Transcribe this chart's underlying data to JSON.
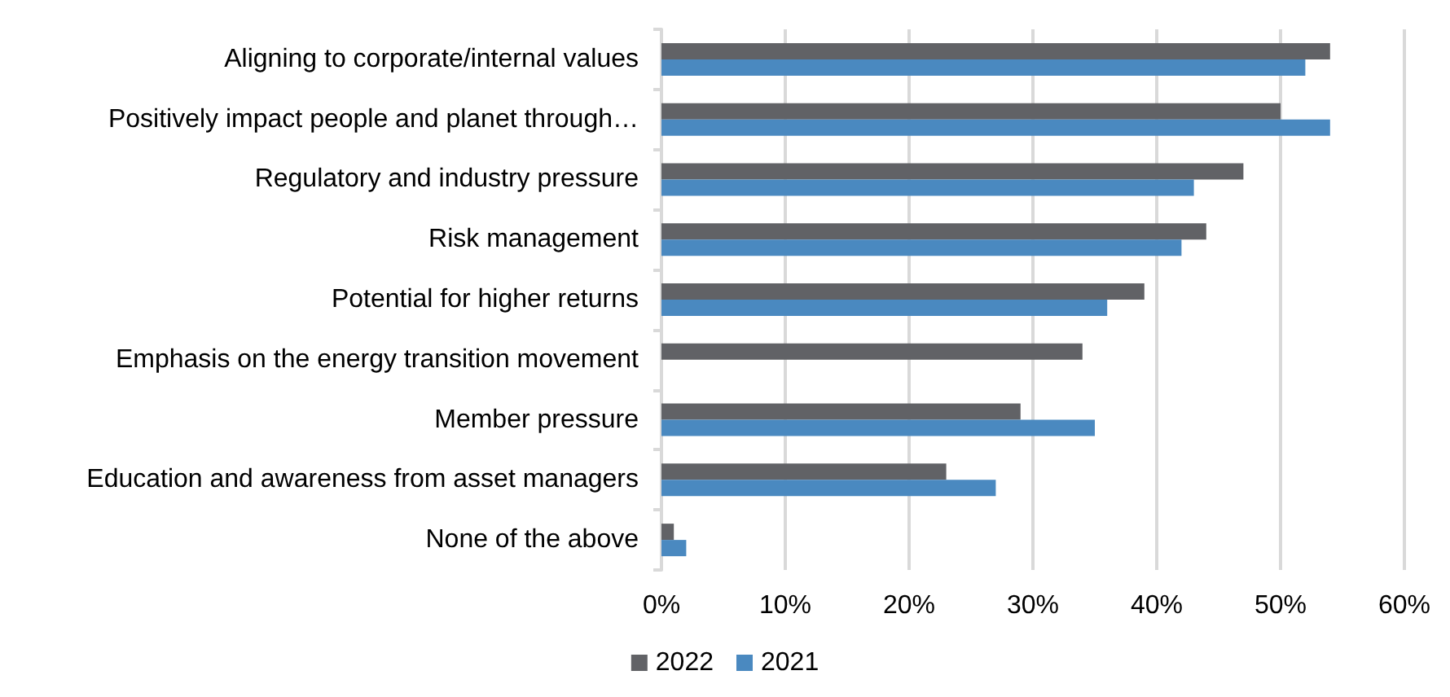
{
  "chart_data": {
    "type": "bar",
    "orientation": "horizontal",
    "categories": [
      "Aligning to corporate/internal values",
      "Positively impact people and planet through…",
      "Regulatory and industry pressure",
      "Risk management",
      "Potential for higher returns",
      "Emphasis on the energy transition movement",
      "Member pressure",
      "Education and awareness from asset managers",
      "None of the above"
    ],
    "series": [
      {
        "name": "2022",
        "color": "#616266",
        "values": [
          54,
          50,
          47,
          44,
          39,
          34,
          29,
          23,
          1
        ]
      },
      {
        "name": "2021",
        "color": "#4a89c0",
        "values": [
          52,
          54,
          43,
          42,
          36,
          null,
          35,
          27,
          2
        ]
      }
    ],
    "xlim": [
      0,
      60
    ],
    "xticks": [
      {
        "value": 0,
        "label": "0%"
      },
      {
        "value": 10,
        "label": "10%"
      },
      {
        "value": 20,
        "label": "20%"
      },
      {
        "value": 30,
        "label": "30%"
      },
      {
        "value": 40,
        "label": "40%"
      },
      {
        "value": 50,
        "label": "50%"
      },
      {
        "value": 60,
        "label": "60%"
      }
    ],
    "grid": "x",
    "legend": "bottom"
  }
}
